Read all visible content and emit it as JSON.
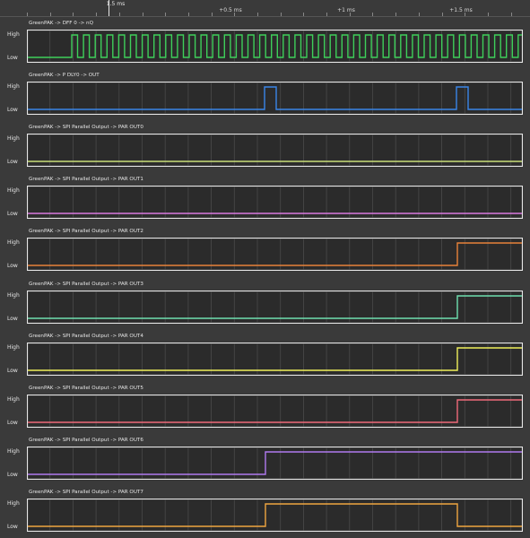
{
  "ruler": {
    "ticks": [
      "1.5 ms",
      "+0.5 ms",
      "+1 ms",
      "+1.5 ms"
    ]
  },
  "levels": {
    "high": "High",
    "low": "Low"
  },
  "channels": [
    {
      "name": "GreenPAK -> DFF 0 -> nQ",
      "color": "#3ecf5a",
      "signal": "clock"
    },
    {
      "name": "GreenPAK -> P DLY0 -> OUT",
      "color": "#3a86e8",
      "signal": "pulses"
    },
    {
      "name": "GreenPAK -> SPI Parallel Output -> PAR OUT0",
      "color": "#c9e07a",
      "signal": "low"
    },
    {
      "name": "GreenPAK -> SPI Parallel Output -> PAR OUT1",
      "color": "#d97be0",
      "signal": "low"
    },
    {
      "name": "GreenPAK -> SPI Parallel Output -> PAR OUT2",
      "color": "#e8823a",
      "signal": "rise_late"
    },
    {
      "name": "GreenPAK -> SPI Parallel Output -> PAR OUT3",
      "color": "#6fe0b0",
      "signal": "rise_late"
    },
    {
      "name": "GreenPAK -> SPI Parallel Output -> PAR OUT4",
      "color": "#f0f05a",
      "signal": "rise_late"
    },
    {
      "name": "GreenPAK -> SPI Parallel Output -> PAR OUT5",
      "color": "#f06a7a",
      "signal": "rise_late"
    },
    {
      "name": "GreenPAK -> SPI Parallel Output -> PAR OUT6",
      "color": "#b07af0",
      "signal": "rise_mid"
    },
    {
      "name": "GreenPAK -> SPI Parallel Output -> PAR OUT7",
      "color": "#f0a640",
      "signal": "pulse_wide"
    }
  ]
}
